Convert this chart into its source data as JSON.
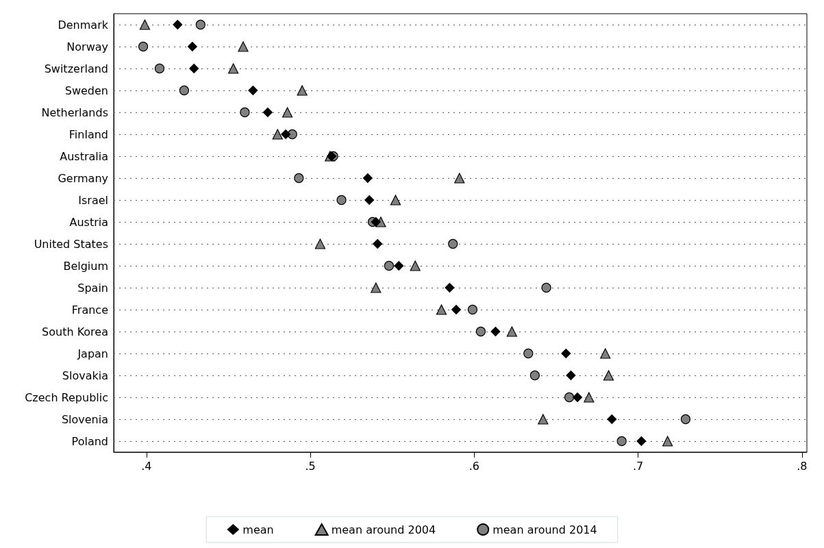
{
  "chart_data": {
    "type": "scatter",
    "categories": [
      "Denmark",
      "Norway",
      "Switzerland",
      "Sweden",
      "Netherlands",
      "Finland",
      "Australia",
      "Germany",
      "Israel",
      "Austria",
      "United States",
      "Belgium",
      "Spain",
      "France",
      "South Korea",
      "Japan",
      "Slovakia",
      "Czech Republic",
      "Slovenia",
      "Poland"
    ],
    "series": [
      {
        "name": "mean",
        "color": "#000000",
        "marker": "diamond",
        "values": [
          0.419,
          0.428,
          0.429,
          0.465,
          0.474,
          0.485,
          0.513,
          0.535,
          0.536,
          0.54,
          0.541,
          0.554,
          0.585,
          0.589,
          0.613,
          0.656,
          0.659,
          0.663,
          0.684,
          0.702
        ]
      },
      {
        "name": "mean around 2004",
        "color": "#808080",
        "marker": "triangle",
        "values": [
          0.399,
          0.459,
          0.453,
          0.495,
          0.486,
          0.48,
          0.512,
          0.591,
          0.552,
          0.543,
          0.506,
          0.564,
          0.54,
          0.58,
          0.623,
          0.68,
          0.682,
          0.67,
          0.642,
          0.718
        ]
      },
      {
        "name": "mean around 2014",
        "color": "#808080",
        "marker": "circle",
        "values": [
          0.433,
          0.398,
          0.408,
          0.423,
          0.46,
          0.489,
          0.514,
          0.493,
          0.519,
          0.538,
          0.587,
          0.548,
          0.644,
          0.599,
          0.604,
          0.633,
          0.637,
          0.658,
          0.729,
          0.69
        ]
      }
    ],
    "xlim": [
      0.38,
      0.803
    ],
    "xticks": [
      {
        "value": 0.4,
        "label": ".4"
      },
      {
        "value": 0.5,
        "label": ".5"
      },
      {
        "value": 0.6,
        "label": ".6"
      },
      {
        "value": 0.7,
        "label": ".7"
      },
      {
        "value": 0.8,
        "label": ".8"
      }
    ],
    "grid": "y",
    "legend": "bottom",
    "orientation": "horizontal"
  }
}
